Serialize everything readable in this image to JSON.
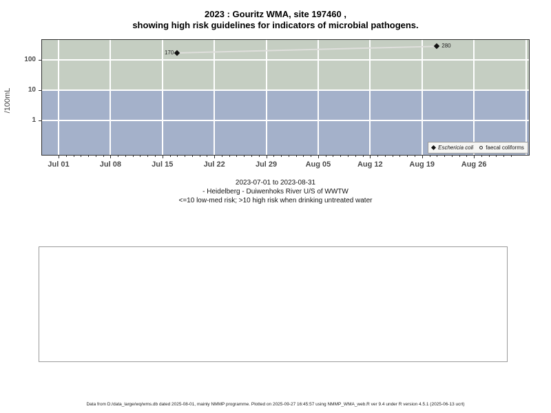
{
  "title": {
    "line1": "2023 : Gouritz WMA, site 197460 ,",
    "line2": "showing high risk guidelines for indicators of microbial pathogens."
  },
  "chart_data": {
    "type": "line",
    "y_axis": {
      "label": "/100mL",
      "scale": "log10",
      "ticks": [
        1,
        10,
        100
      ]
    },
    "x_axis": {
      "start_date": "2023-07-01",
      "end_date": "2023-08-31",
      "tick_labels": [
        "Jul 01",
        "Jul 08",
        "Jul 15",
        "Jul 22",
        "Jul 29",
        "Aug 05",
        "Aug 12",
        "Aug 19",
        "Aug 26"
      ],
      "minor_ticks": "daily"
    },
    "risk_bands": {
      "boundary_value": 10,
      "above_color": "#c5cec2",
      "below_color": "#a4b1ca"
    },
    "grid_color": "#ffffff",
    "series": [
      {
        "name": "Eschericia coli",
        "marker": "filled-diamond",
        "marker_color": "#111111",
        "line_color": "#dfdfdc",
        "points": [
          {
            "date": "2023-07-17",
            "value": 170,
            "label": "170",
            "label_side": "left"
          },
          {
            "date": "2023-08-21",
            "value": 280,
            "label": "280",
            "label_side": "right"
          }
        ]
      },
      {
        "name": "faecal coliforms",
        "marker": "open-circle",
        "marker_color": "#111111",
        "points": []
      }
    ],
    "legend_position": "bottom-right"
  },
  "captions": {
    "line1": "2023-07-01 to 2023-08-31",
    "line2": "- Heidelberg - Duiwenhoks River U/S of WWTW",
    "line3": "<=10 low-med risk; >10 high risk when drinking untreated water"
  },
  "footer": {
    "text": "Data from D:/data_large/wq/wms.db dated 2025-08-01, mainly NMMP programme. Plotted on 2025-09-27 16:45:57 using NMMP_WMA_web.R ver 9.4 under R version 4.5.1 (2025-06-13 ucrt)"
  }
}
